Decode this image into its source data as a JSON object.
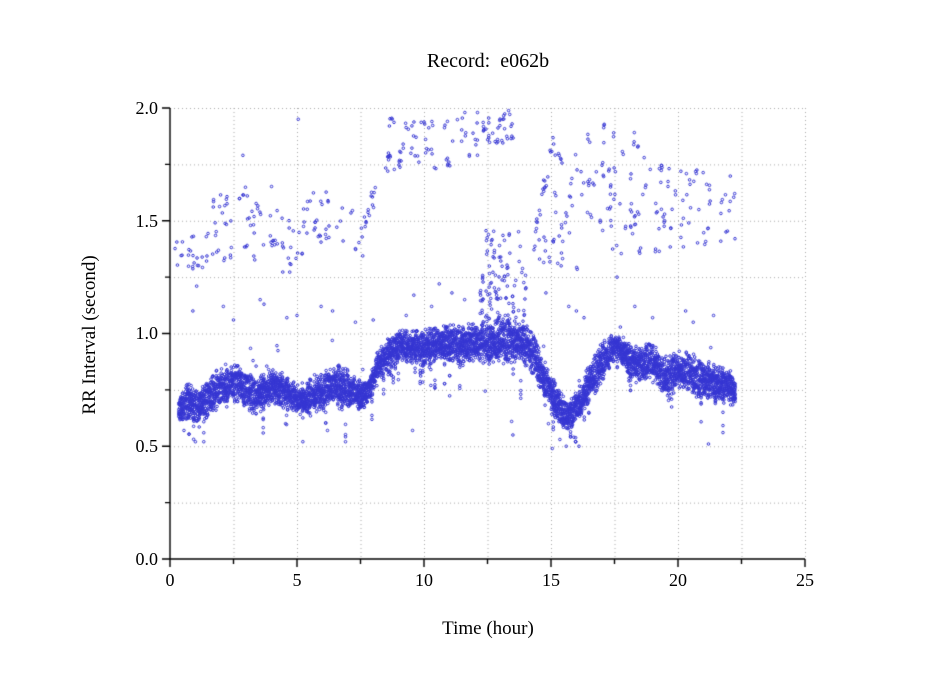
{
  "chart_data": {
    "type": "scatter",
    "title": "Record:  e062b",
    "xlabel": "Time (hour)",
    "ylabel": "RR Interval (second)",
    "xlim": [
      0,
      25
    ],
    "ylim": [
      0.0,
      2.0
    ],
    "x_tick_labels": [
      "0",
      "5",
      "10",
      "15",
      "20",
      "25"
    ],
    "y_tick_labels": [
      "0.0",
      "0.5",
      "1.0",
      "1.5",
      "2.0"
    ],
    "x_major_tick_values": [
      0,
      5,
      10,
      15,
      20,
      25
    ],
    "y_major_tick_values": [
      0.0,
      0.5,
      1.0,
      1.5,
      2.0
    ],
    "x_minor_step": 2.5,
    "y_minor_step": 0.25,
    "grid": {
      "style": "dotted",
      "x_interval": 2.5,
      "y_interval": 0.25
    },
    "legend": "none",
    "marker": {
      "shape": "open-circle",
      "radius": 1.3,
      "color": "#3434d2"
    },
    "colors": {
      "marker": "#3434d2",
      "grid": "#a8a8a8",
      "axis": "#000000",
      "text": "#000000"
    },
    "data_x_range": [
      0.35,
      22.25
    ],
    "band_profile_comment": "main dense RR band: [hour, center_sec, halfwidth_sec]",
    "band_profile": [
      [
        0.35,
        0.66,
        0.05
      ],
      [
        0.7,
        0.7,
        0.06
      ],
      [
        1.0,
        0.68,
        0.06
      ],
      [
        1.3,
        0.7,
        0.06
      ],
      [
        1.7,
        0.74,
        0.07
      ],
      [
        2.1,
        0.76,
        0.07
      ],
      [
        2.5,
        0.78,
        0.06
      ],
      [
        2.9,
        0.77,
        0.07
      ],
      [
        3.3,
        0.72,
        0.06
      ],
      [
        3.7,
        0.74,
        0.06
      ],
      [
        4.0,
        0.77,
        0.06
      ],
      [
        4.4,
        0.75,
        0.06
      ],
      [
        4.8,
        0.72,
        0.06
      ],
      [
        5.2,
        0.7,
        0.06
      ],
      [
        5.6,
        0.72,
        0.06
      ],
      [
        6.0,
        0.74,
        0.06
      ],
      [
        6.4,
        0.77,
        0.07
      ],
      [
        6.8,
        0.76,
        0.07
      ],
      [
        7.2,
        0.74,
        0.06
      ],
      [
        7.6,
        0.72,
        0.05
      ],
      [
        7.9,
        0.76,
        0.05
      ],
      [
        8.2,
        0.85,
        0.06
      ],
      [
        8.6,
        0.92,
        0.05
      ],
      [
        9.0,
        0.945,
        0.055
      ],
      [
        9.5,
        0.94,
        0.06
      ],
      [
        10.0,
        0.95,
        0.06
      ],
      [
        10.5,
        0.945,
        0.065
      ],
      [
        11.0,
        0.96,
        0.065
      ],
      [
        11.5,
        0.95,
        0.07
      ],
      [
        12.0,
        0.965,
        0.07
      ],
      [
        12.5,
        0.96,
        0.075
      ],
      [
        13.0,
        0.97,
        0.075
      ],
      [
        13.5,
        0.965,
        0.075
      ],
      [
        14.0,
        0.95,
        0.07
      ],
      [
        14.35,
        0.91,
        0.08
      ],
      [
        14.7,
        0.79,
        0.08
      ],
      [
        15.0,
        0.74,
        0.07
      ],
      [
        15.3,
        0.68,
        0.06
      ],
      [
        15.6,
        0.635,
        0.05
      ],
      [
        15.9,
        0.655,
        0.05
      ],
      [
        16.2,
        0.71,
        0.06
      ],
      [
        16.6,
        0.8,
        0.07
      ],
      [
        17.0,
        0.87,
        0.06
      ],
      [
        17.4,
        0.93,
        0.055
      ],
      [
        17.7,
        0.94,
        0.055
      ],
      [
        18.0,
        0.89,
        0.06
      ],
      [
        18.4,
        0.86,
        0.065
      ],
      [
        18.8,
        0.88,
        0.06
      ],
      [
        19.2,
        0.85,
        0.07
      ],
      [
        19.6,
        0.8,
        0.075
      ],
      [
        20.0,
        0.84,
        0.065
      ],
      [
        20.4,
        0.83,
        0.065
      ],
      [
        20.8,
        0.8,
        0.07
      ],
      [
        21.2,
        0.79,
        0.07
      ],
      [
        21.6,
        0.77,
        0.065
      ],
      [
        22.0,
        0.77,
        0.06
      ],
      [
        22.25,
        0.74,
        0.05
      ]
    ],
    "band_column_step_hours": 0.02,
    "band_points_per_column": [
      4,
      8
    ],
    "outlier_clusters_comment": "ectopic/long-interval cloud: [x0, x1, y0, y1, n, shape]",
    "outlier_clusters": [
      [
        0.15,
        1.35,
        1.28,
        1.48,
        18,
        "rect"
      ],
      [
        1.4,
        2.65,
        1.3,
        1.62,
        22,
        "rect"
      ],
      [
        2.6,
        4.25,
        1.33,
        1.66,
        26,
        "rect"
      ],
      [
        4.2,
        5.3,
        1.27,
        1.52,
        18,
        "rect"
      ],
      [
        5.2,
        6.7,
        1.4,
        1.63,
        20,
        "rect"
      ],
      [
        6.7,
        7.7,
        1.33,
        1.57,
        12,
        "rect"
      ],
      [
        7.6,
        8.7,
        1.48,
        1.8,
        15,
        "diag"
      ],
      [
        8.6,
        9.7,
        1.72,
        1.97,
        20,
        "rect"
      ],
      [
        9.7,
        11.3,
        1.73,
        1.96,
        20,
        "rect"
      ],
      [
        11.3,
        12.4,
        1.78,
        1.99,
        18,
        "rect"
      ],
      [
        12.4,
        13.5,
        1.84,
        1.99,
        22,
        "rect"
      ],
      [
        12.2,
        14.05,
        1.05,
        1.28,
        60,
        "rect"
      ],
      [
        12.4,
        13.9,
        1.28,
        1.47,
        25,
        "rect"
      ],
      [
        14.4,
        15.1,
        1.28,
        1.45,
        8,
        "rect"
      ],
      [
        14.35,
        15.15,
        1.42,
        1.88,
        16,
        "diag"
      ],
      [
        15.1,
        16.3,
        1.28,
        1.8,
        26,
        "rect"
      ],
      [
        16.4,
        17.3,
        1.45,
        1.95,
        18,
        "rect"
      ],
      [
        17.3,
        18.5,
        1.35,
        1.92,
        30,
        "rect"
      ],
      [
        18.5,
        19.7,
        1.35,
        1.78,
        22,
        "rect"
      ],
      [
        19.7,
        20.9,
        1.38,
        1.76,
        20,
        "rect"
      ],
      [
        20.9,
        22.25,
        1.4,
        1.75,
        18,
        "rect"
      ]
    ],
    "high_points": [
      [
        2.87,
        1.79
      ],
      [
        5.05,
        1.95
      ]
    ],
    "mid_points": [
      [
        0.9,
        1.1
      ],
      [
        1.05,
        1.21
      ],
      [
        2.1,
        1.12
      ],
      [
        2.5,
        1.06
      ],
      [
        3.55,
        1.15
      ],
      [
        3.7,
        1.13
      ],
      [
        4.6,
        1.07
      ],
      [
        5.0,
        1.08
      ],
      [
        5.95,
        1.12
      ],
      [
        6.4,
        1.1
      ],
      [
        7.3,
        1.05
      ],
      [
        8.0,
        1.06
      ],
      [
        9.3,
        1.08
      ],
      [
        9.6,
        1.17
      ],
      [
        10.3,
        1.12
      ],
      [
        10.6,
        1.22
      ],
      [
        11.1,
        1.18
      ],
      [
        11.6,
        1.15
      ],
      [
        14.55,
        1.33
      ],
      [
        14.8,
        1.18
      ],
      [
        15.4,
        1.3
      ],
      [
        15.7,
        1.12
      ],
      [
        16.0,
        1.1
      ],
      [
        16.3,
        1.07
      ],
      [
        17.6,
        1.25
      ],
      [
        18.3,
        1.12
      ],
      [
        19.0,
        1.07
      ],
      [
        20.3,
        1.1
      ],
      [
        20.6,
        1.05
      ],
      [
        21.4,
        1.08
      ]
    ],
    "low_outliers": [
      [
        0.55,
        0.57
      ],
      [
        1.0,
        0.52
      ],
      [
        4.55,
        0.6
      ],
      [
        6.2,
        0.57
      ],
      [
        9.55,
        0.57
      ],
      [
        13.45,
        0.61
      ],
      [
        13.5,
        0.55
      ],
      [
        14.9,
        0.6
      ],
      [
        15.05,
        0.49
      ],
      [
        15.35,
        0.53
      ],
      [
        15.6,
        0.5
      ],
      [
        15.9,
        0.54
      ],
      [
        16.1,
        0.5
      ],
      [
        21.2,
        0.51
      ]
    ]
  }
}
